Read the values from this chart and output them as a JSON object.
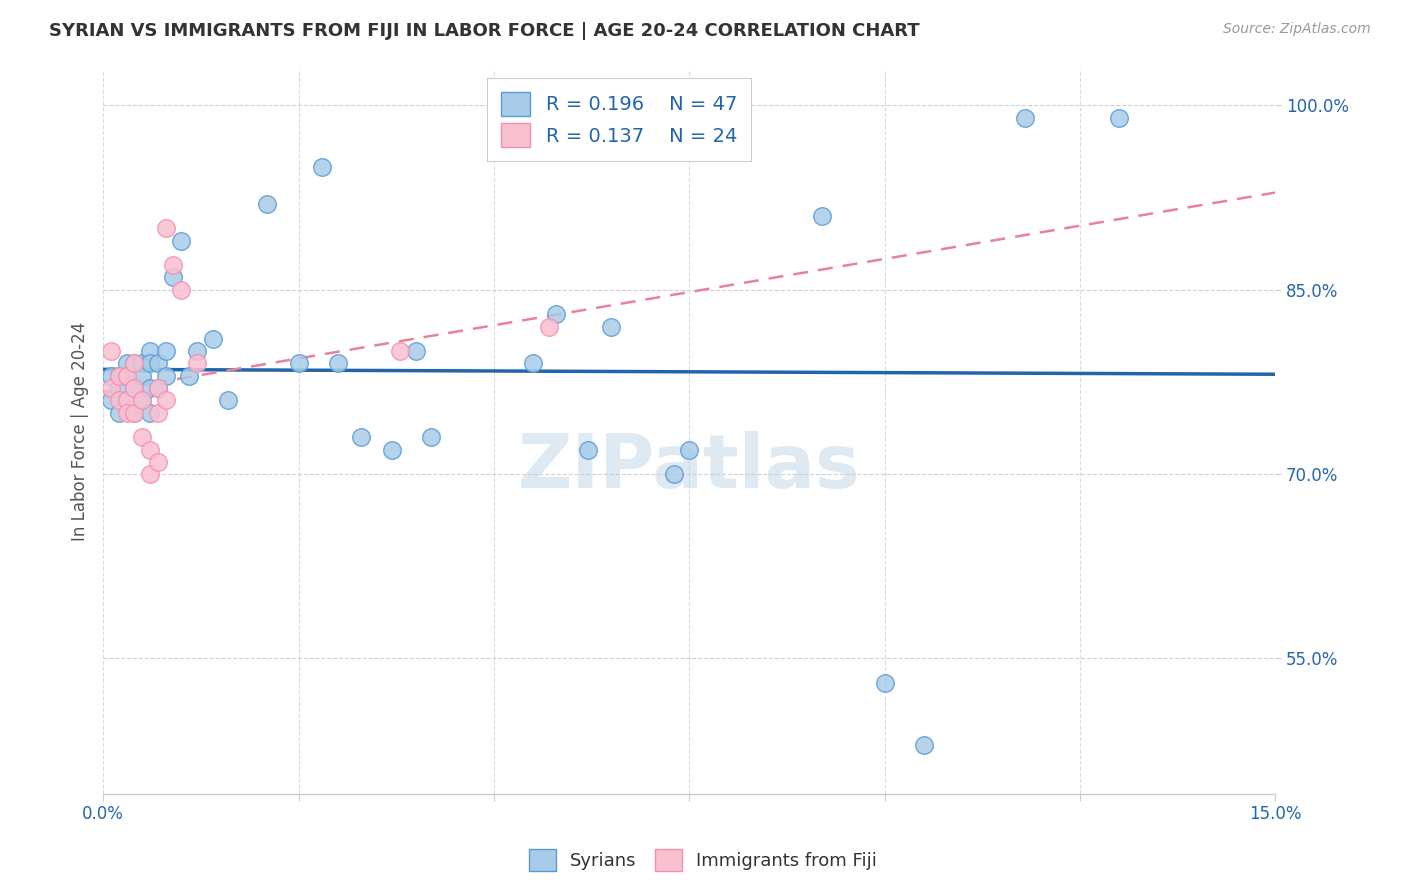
{
  "title": "SYRIAN VS IMMIGRANTS FROM FIJI IN LABOR FORCE | AGE 20-24 CORRELATION CHART",
  "source": "Source: ZipAtlas.com",
  "ylabel": "In Labor Force | Age 20-24",
  "xlim": [
    0.0,
    0.15
  ],
  "ylim": [
    0.44,
    1.03
  ],
  "xticks": [
    0.0,
    0.025,
    0.05,
    0.075,
    0.1,
    0.125,
    0.15
  ],
  "xtick_labels": [
    "0.0%",
    "",
    "",
    "",
    "",
    "",
    "15.0%"
  ],
  "ytick_positions": [
    0.55,
    0.7,
    0.85,
    1.0
  ],
  "ytick_labels": [
    "55.0%",
    "70.0%",
    "85.0%",
    "100.0%"
  ],
  "watermark": "ZIPatlas",
  "legend_r1": "R = 0.196",
  "legend_n1": "N = 47",
  "legend_r2": "R = 0.137",
  "legend_n2": "N = 24",
  "syrians_x": [
    0.001,
    0.001,
    0.002,
    0.002,
    0.002,
    0.003,
    0.003,
    0.003,
    0.004,
    0.004,
    0.004,
    0.005,
    0.005,
    0.005,
    0.006,
    0.006,
    0.006,
    0.006,
    0.007,
    0.007,
    0.008,
    0.008,
    0.009,
    0.01,
    0.011,
    0.012,
    0.014,
    0.016,
    0.021,
    0.025,
    0.028,
    0.03,
    0.033,
    0.037,
    0.04,
    0.042,
    0.055,
    0.058,
    0.062,
    0.065,
    0.073,
    0.075,
    0.092,
    0.1,
    0.105,
    0.118,
    0.13
  ],
  "syrians_y": [
    0.78,
    0.76,
    0.78,
    0.77,
    0.75,
    0.79,
    0.78,
    0.76,
    0.79,
    0.77,
    0.75,
    0.79,
    0.78,
    0.76,
    0.8,
    0.79,
    0.77,
    0.75,
    0.79,
    0.77,
    0.8,
    0.78,
    0.86,
    0.89,
    0.78,
    0.8,
    0.81,
    0.76,
    0.92,
    0.79,
    0.95,
    0.79,
    0.73,
    0.72,
    0.8,
    0.73,
    0.79,
    0.83,
    0.72,
    0.82,
    0.7,
    0.72,
    0.91,
    0.53,
    0.48,
    0.99,
    0.99
  ],
  "fiji_x": [
    0.001,
    0.001,
    0.002,
    0.002,
    0.003,
    0.003,
    0.003,
    0.004,
    0.004,
    0.004,
    0.005,
    0.005,
    0.006,
    0.006,
    0.007,
    0.007,
    0.007,
    0.008,
    0.008,
    0.009,
    0.01,
    0.012,
    0.038,
    0.057
  ],
  "fiji_y": [
    0.8,
    0.77,
    0.78,
    0.76,
    0.78,
    0.76,
    0.75,
    0.79,
    0.77,
    0.75,
    0.76,
    0.73,
    0.72,
    0.7,
    0.77,
    0.75,
    0.71,
    0.76,
    0.9,
    0.87,
    0.85,
    0.79,
    0.8,
    0.82
  ],
  "syrian_color": "#a8cce8",
  "fiji_color": "#f9c0d0",
  "syrian_edge_color": "#5b9bd5",
  "fiji_edge_color": "#f48fb1",
  "syrian_line_color": "#2166ac",
  "fiji_line_color": "#e8829a",
  "bg_color": "#ffffff",
  "grid_color": "#cccccc",
  "title_color": "#333333",
  "axis_color": "#2166ac"
}
